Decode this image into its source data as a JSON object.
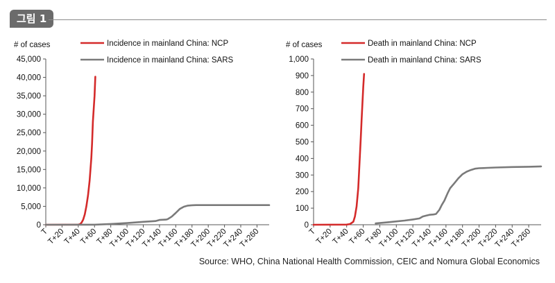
{
  "figure": {
    "label": "그림 1",
    "source": "Source: WHO, China National Health Commission, CEIC and Nomura Global Economics"
  },
  "colors": {
    "ncp": "#d42a2a",
    "sars": "#7a7a7a",
    "axis": "#555555",
    "text": "#111111"
  },
  "chart_data": [
    {
      "type": "line",
      "ylabel": "# of cases",
      "ylim": [
        0,
        45000
      ],
      "y_ticks": [
        "0",
        "5,000",
        "10,000",
        "15,000",
        "20,000",
        "25,000",
        "30,000",
        "35,000",
        "40,000",
        "45,000"
      ],
      "xlim": [
        0,
        275
      ],
      "x_ticks": [
        "T",
        "T+20",
        "T+40",
        "T+60",
        "T+80",
        "T+100",
        "T+120",
        "T+140",
        "T+160",
        "T+180",
        "T+200",
        "T+220",
        "T+240",
        "T+260"
      ],
      "legend_placement": "top",
      "grid": false,
      "series": [
        {
          "name": "Incidence in mainland China: NCP",
          "color": "ncp",
          "x": [
            0,
            40,
            42,
            44,
            46,
            48,
            50,
            52,
            54,
            55,
            56,
            57,
            58,
            60,
            61
          ],
          "y": [
            0,
            40,
            150,
            550,
            1400,
            2800,
            5000,
            8000,
            12000,
            15000,
            18000,
            22000,
            28000,
            35000,
            40200
          ]
        },
        {
          "name": "Incidence in mainland China: SARS",
          "color": "sars",
          "x": [
            0,
            60,
            80,
            100,
            120,
            135,
            140,
            148,
            150,
            155,
            160,
            165,
            170,
            175,
            180,
            185,
            200,
            220,
            240,
            260,
            275
          ],
          "y": [
            0,
            20,
            200,
            450,
            800,
            1000,
            1300,
            1400,
            1500,
            2200,
            3200,
            4300,
            4900,
            5200,
            5300,
            5330,
            5330,
            5330,
            5330,
            5330,
            5330
          ]
        }
      ]
    },
    {
      "type": "line",
      "ylabel": "# of cases",
      "ylim": [
        0,
        1000
      ],
      "y_ticks": [
        "0",
        "100",
        "200",
        "300",
        "400",
        "500",
        "600",
        "700",
        "800",
        "900",
        "1,000"
      ],
      "xlim": [
        0,
        275
      ],
      "x_ticks": [
        "T",
        "T+20",
        "T+40",
        "T+60",
        "T+80",
        "T+100",
        "T+120",
        "T+140",
        "T+160",
        "T+180",
        "T+200",
        "T+220",
        "T+240",
        "T+260"
      ],
      "legend_placement": "top",
      "grid": false,
      "series": [
        {
          "name": "Death in mainland China: NCP",
          "color": "ncp",
          "x": [
            0,
            40,
            44,
            48,
            50,
            52,
            54,
            55,
            56,
            57,
            58,
            59,
            60,
            61
          ],
          "y": [
            0,
            1,
            4,
            18,
            50,
            110,
            220,
            320,
            420,
            520,
            630,
            730,
            830,
            910
          ]
        },
        {
          "name": "Death in mainland China: SARS",
          "color": "sars",
          "x": [
            75,
            90,
            100,
            110,
            120,
            128,
            132,
            136,
            140,
            145,
            148,
            152,
            155,
            158,
            162,
            165,
            170,
            175,
            180,
            185,
            190,
            195,
            200,
            205,
            210,
            220,
            240,
            260,
            275
          ],
          "y": [
            8,
            15,
            20,
            25,
            32,
            38,
            50,
            55,
            60,
            62,
            65,
            90,
            120,
            145,
            190,
            220,
            250,
            280,
            305,
            320,
            330,
            338,
            341,
            342,
            343,
            345,
            348,
            350,
            352
          ]
        }
      ]
    }
  ]
}
